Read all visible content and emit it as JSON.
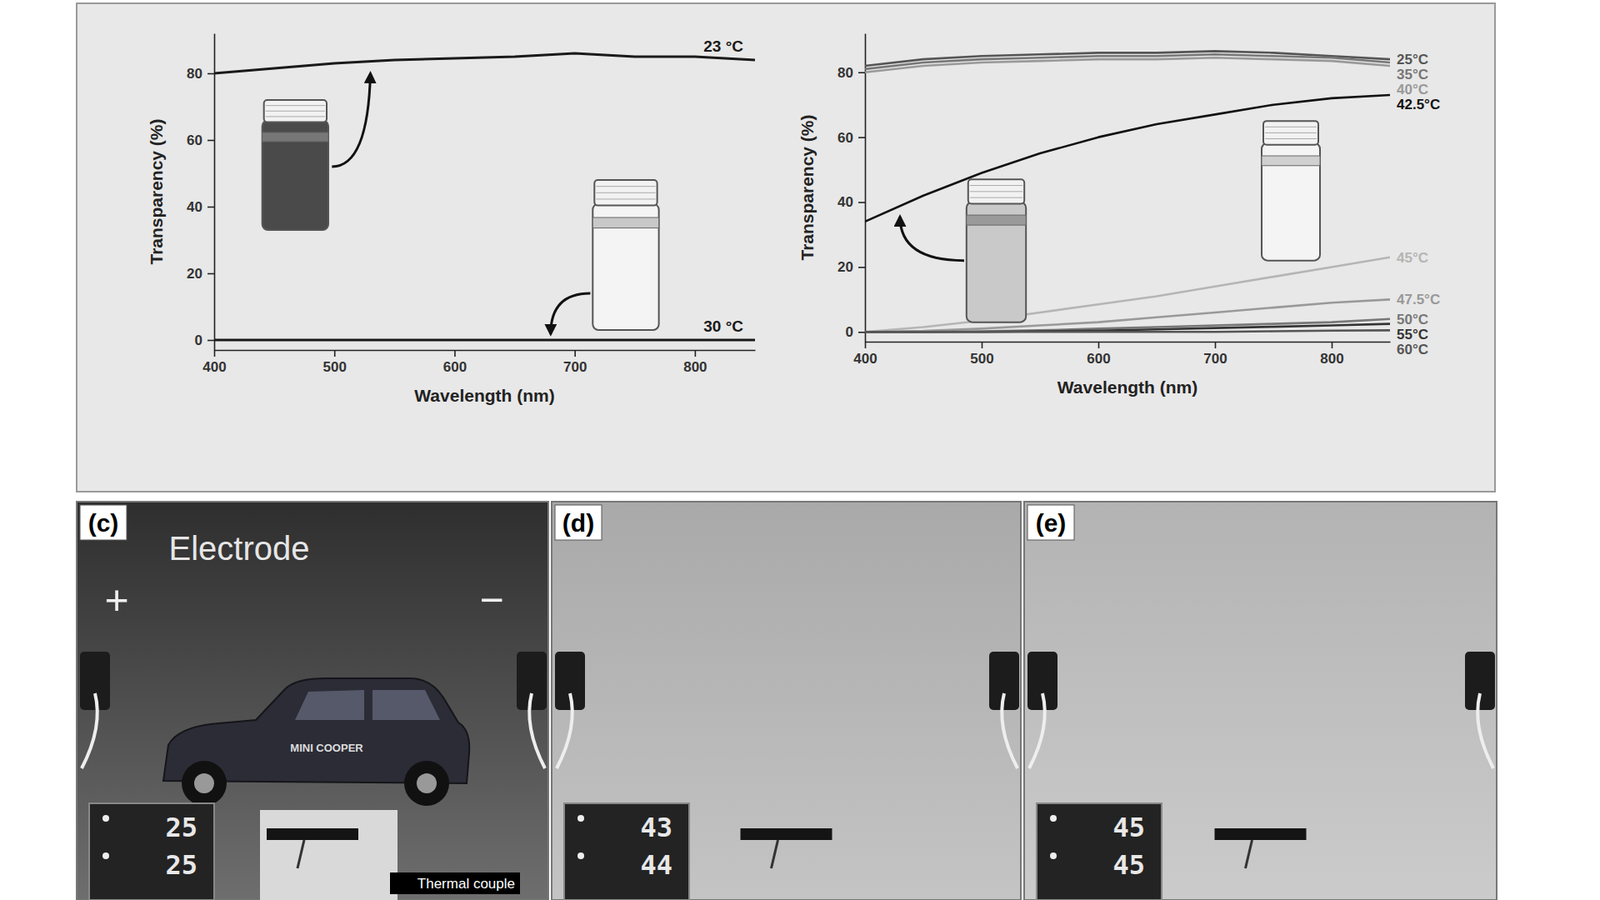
{
  "chart_data": [
    {
      "type": "line",
      "x_label": "Wavelength (nm)",
      "y_label": "Transparency (%)",
      "x": [
        400,
        450,
        500,
        550,
        600,
        650,
        700,
        750,
        800,
        850
      ],
      "xlim": [
        400,
        850
      ],
      "xticks": [
        400,
        500,
        600,
        700,
        800
      ],
      "ylim": [
        -3,
        92
      ],
      "yticks": [
        0,
        20,
        40,
        60,
        80
      ],
      "grid": false,
      "series": [
        {
          "name": "23 °C",
          "color": "#1a1a1a",
          "values": [
            80,
            81.5,
            83,
            84,
            84.5,
            85,
            86,
            85,
            85,
            84
          ]
        },
        {
          "name": "30 °C",
          "color": "#1a1a1a",
          "values": [
            0,
            0,
            0,
            0,
            0,
            0,
            0,
            0,
            0,
            0
          ]
        }
      ]
    },
    {
      "type": "line",
      "x_label": "Wavelength (nm)",
      "y_label": "Transparency (%)",
      "x": [
        400,
        450,
        500,
        550,
        600,
        650,
        700,
        750,
        800,
        850
      ],
      "xlim": [
        400,
        850
      ],
      "xticks": [
        400,
        500,
        600,
        700,
        800
      ],
      "ylim": [
        -3,
        92
      ],
      "yticks": [
        0,
        20,
        40,
        60,
        80
      ],
      "grid": false,
      "series": [
        {
          "name": "25°C",
          "color": "#555555",
          "values": [
            82,
            84,
            85,
            85.5,
            86,
            86,
            86.5,
            86,
            85,
            84
          ]
        },
        {
          "name": "35°C",
          "color": "#777777",
          "values": [
            81,
            83,
            84,
            84.5,
            85,
            85,
            85.5,
            85,
            84.5,
            83
          ]
        },
        {
          "name": "40°C",
          "color": "#999999",
          "values": [
            80,
            82,
            83,
            83.5,
            84,
            84,
            84.5,
            84,
            83.5,
            82
          ]
        },
        {
          "name": "42.5°C",
          "color": "#111111",
          "values": [
            34,
            42,
            49,
            55,
            60,
            64,
            67,
            70,
            72,
            73
          ]
        },
        {
          "name": "45°C",
          "color": "#b5b5b5",
          "values": [
            0,
            1.5,
            3.5,
            6,
            8.5,
            11,
            14,
            17,
            20,
            23
          ]
        },
        {
          "name": "47.5°C",
          "color": "#999999",
          "values": [
            0,
            0.3,
            1,
            2,
            3,
            4.5,
            6,
            7.5,
            9,
            10
          ]
        },
        {
          "name": "50°C",
          "color": "#777777",
          "values": [
            0,
            0,
            0.2,
            0.5,
            1,
            1.5,
            2,
            2.5,
            3,
            4
          ]
        },
        {
          "name": "55°C",
          "color": "#333333",
          "values": [
            0,
            0,
            0,
            0.2,
            0.4,
            0.8,
            1.2,
            1.6,
            2,
            2.5
          ]
        },
        {
          "name": "60°C",
          "color": "#555555",
          "values": [
            0,
            0,
            0,
            0,
            0,
            0,
            0,
            0.2,
            0.4,
            0.5
          ]
        }
      ]
    }
  ],
  "photos": [
    {
      "label": "(c)",
      "annotations": [
        "Electrode",
        "+",
        "−",
        "Thermal couple"
      ],
      "car_text": "MINI COOPER",
      "readout": [
        "25",
        "25"
      ]
    },
    {
      "label": "(d)",
      "readout": [
        "43",
        "44"
      ]
    },
    {
      "label": "(e)",
      "readout": [
        "45",
        "45"
      ]
    }
  ]
}
